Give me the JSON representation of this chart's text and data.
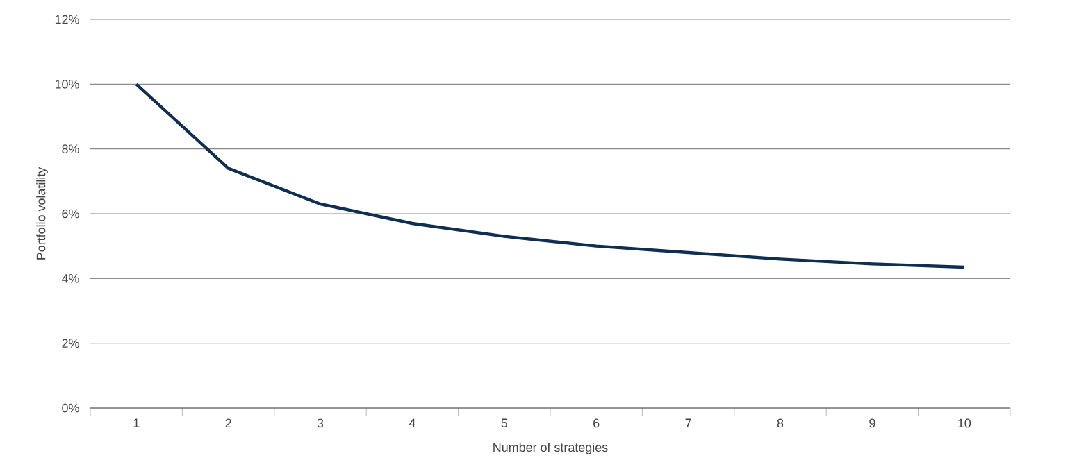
{
  "chart_data": {
    "type": "line",
    "xlabel": "Number of strategies",
    "ylabel": "Portfolio volatility",
    "categories": [
      "1",
      "2",
      "3",
      "4",
      "5",
      "6",
      "7",
      "8",
      "9",
      "10"
    ],
    "series": [
      {
        "color": "#0e2f52",
        "values": [
          10,
          7.4,
          6.3,
          5.7,
          5.3,
          5.0,
          4.8,
          4.6,
          4.45,
          4.35
        ]
      }
    ],
    "ylim": [
      0,
      12
    ],
    "yticks": [
      {
        "value": 0,
        "label": "0%"
      },
      {
        "value": 2,
        "label": "2%"
      },
      {
        "value": 4,
        "label": "4%"
      },
      {
        "value": 6,
        "label": "6%"
      },
      {
        "value": 8,
        "label": "8%"
      },
      {
        "value": 10,
        "label": "10%"
      },
      {
        "value": 12,
        "label": "12%"
      }
    ],
    "grid": "y",
    "legend": false,
    "marker": "none",
    "line_style": "solid"
  }
}
